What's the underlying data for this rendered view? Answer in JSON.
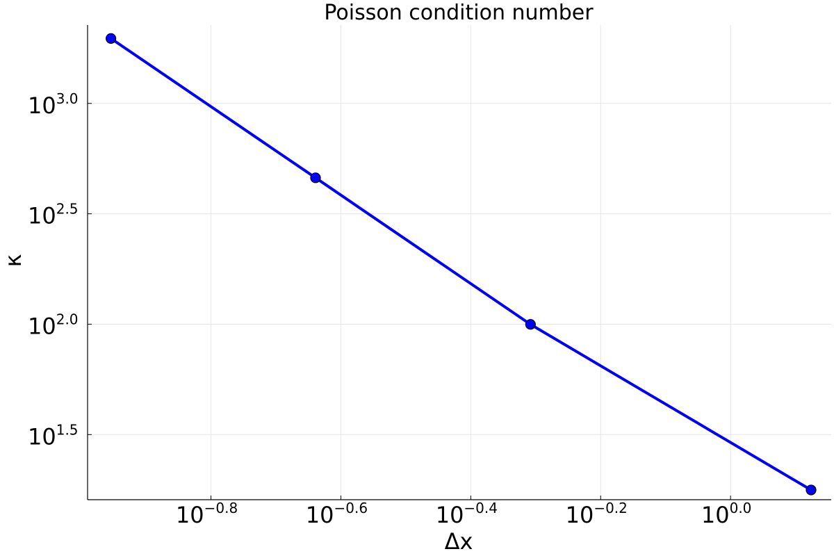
{
  "chart_data": {
    "type": "line",
    "title": "Poisson condition number",
    "xlabel": "Δx",
    "ylabel": "κ",
    "xscale": "log10",
    "yscale": "log10",
    "xlim_exp": [
      -0.99,
      0.155
    ],
    "ylim_exp": [
      1.205,
      3.355
    ],
    "x_ticks_exp": [
      "-0.8",
      "-0.6",
      "-0.4",
      "-0.2",
      "0.0"
    ],
    "y_ticks_exp": [
      "1.5",
      "2.0",
      "2.5",
      "3.0"
    ],
    "tick_base": "10",
    "grid": true,
    "legend": false,
    "series": [
      {
        "name": "κ",
        "color": "#0000ff",
        "x_exp": [
          -0.954,
          -0.639,
          -0.308,
          0.124
        ],
        "y_exp": [
          3.294,
          2.663,
          1.999,
          1.249
        ]
      }
    ]
  }
}
